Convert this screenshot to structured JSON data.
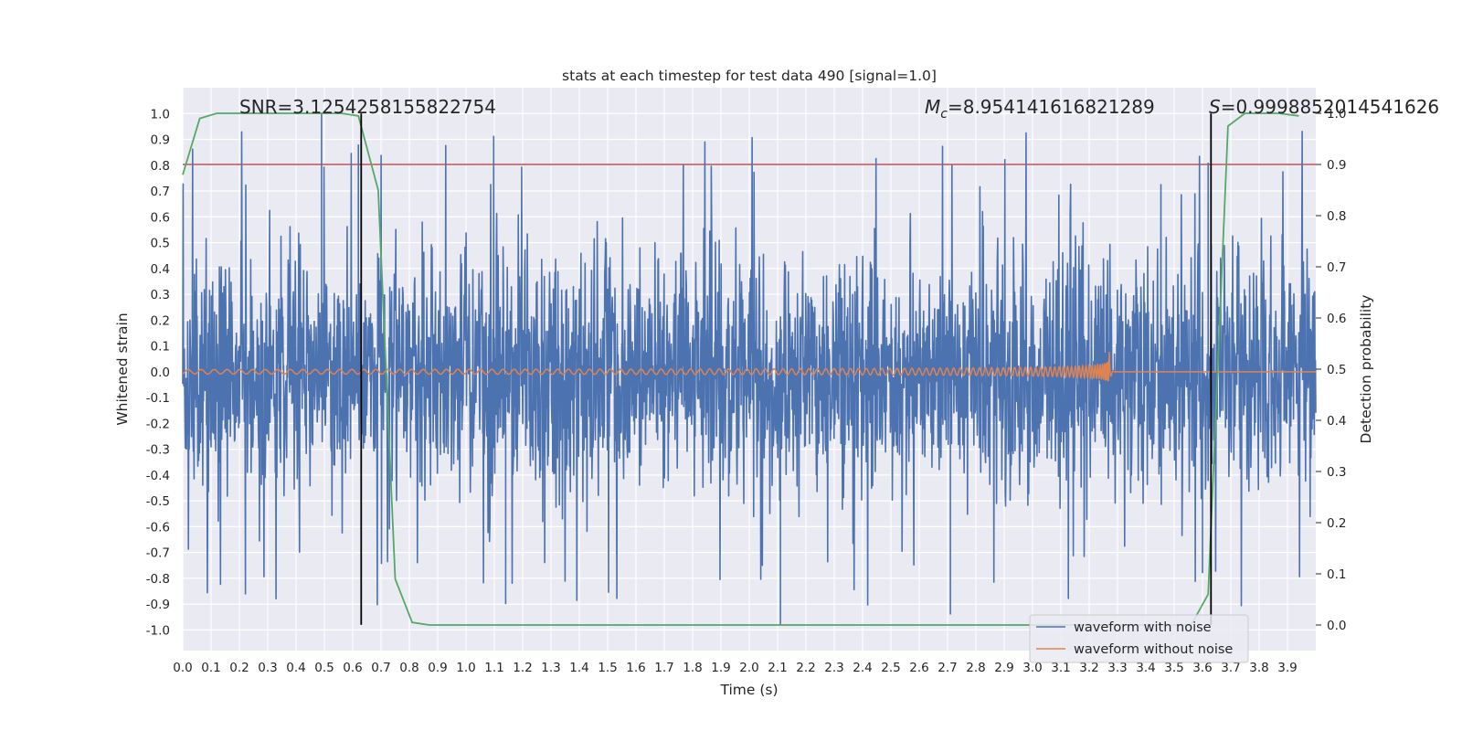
{
  "chart_data": {
    "type": "line",
    "title": "stats at each timestep for test data 490 [signal=1.0]",
    "xlabel": "Time (s)",
    "ylabel": "Whitened strain",
    "y2label": "Detection probability",
    "xlim": [
      0.0,
      4.0
    ],
    "ylim": [
      -1.08,
      1.1
    ],
    "y2lim": [
      -0.05,
      1.05
    ],
    "x_ticks": [
      0.0,
      0.1,
      0.2,
      0.3,
      0.4,
      0.5,
      0.6,
      0.7,
      0.8,
      0.9,
      1.0,
      1.1,
      1.2,
      1.3,
      1.4,
      1.5,
      1.6,
      1.7,
      1.8,
      1.9,
      2.0,
      2.1,
      2.2,
      2.3,
      2.4,
      2.5,
      2.6,
      2.7,
      2.8,
      2.9,
      3.0,
      3.1,
      3.2,
      3.3,
      3.4,
      3.5,
      3.6,
      3.7,
      3.8,
      3.9
    ],
    "y_ticks": [
      1.0,
      0.9,
      0.8,
      0.7,
      0.6,
      0.5,
      0.4,
      0.3,
      0.2,
      0.1,
      0.0,
      -0.1,
      -0.2,
      -0.3,
      -0.4,
      -0.5,
      -0.6,
      -0.7,
      -0.8,
      -0.9,
      -1.0
    ],
    "y2_ticks": [
      1.0,
      0.9,
      0.8,
      0.7,
      0.6,
      0.5,
      0.4,
      0.3,
      0.2,
      0.1,
      0.0
    ],
    "annotations": {
      "snr": "SNR=3.1254258155822754",
      "mc_symbol": "M",
      "mc_sub": "c",
      "mc_value": "=8.954141616821289",
      "s_symbol": "S",
      "s_value": "=0.9998852014541626"
    },
    "legend": {
      "location": "lower-right",
      "entries": [
        "waveform with noise",
        "waveform without noise"
      ]
    },
    "series": [
      {
        "name": "waveform with noise",
        "axis": "left",
        "color": "#4c72b0",
        "description": "dense noisy whitened strain, amplitude roughly within +/-0.45 with spikes up to about +/-1.0",
        "noise_std": 0.22,
        "notable_spikes": [
          {
            "x": 0.49,
            "y": 1.0
          },
          {
            "x": 0.62,
            "y": 0.88
          },
          {
            "x": 2.11,
            "y": -0.98
          },
          {
            "x": 2.71,
            "y": -0.94
          },
          {
            "x": 3.62,
            "y": 0.81
          },
          {
            "x": 3.6,
            "y": -0.78
          },
          {
            "x": 1.14,
            "y": -0.9
          }
        ]
      },
      {
        "name": "waveform without noise",
        "axis": "left",
        "color": "#dd8452",
        "description": "chirp signal with growing amplitude and frequency, merger near 3.27 s",
        "merger_time": 3.27,
        "peak_amplitude": 0.1
      },
      {
        "name": "detection probability",
        "axis": "right",
        "color": "#55a868",
        "x": [
          0.0,
          0.06,
          0.12,
          0.19,
          0.25,
          0.31,
          0.37,
          0.44,
          0.5,
          0.56,
          0.62,
          0.69,
          0.75,
          0.81,
          0.87,
          0.94,
          1.0,
          1.5,
          2.0,
          2.5,
          3.0,
          3.37,
          3.44,
          3.5,
          3.56,
          3.62,
          3.69,
          3.75,
          3.81,
          3.87,
          3.94
        ],
        "y": [
          0.88,
          0.99,
          1.0,
          1.0,
          1.0,
          1.0,
          1.0,
          1.0,
          1.0,
          1.0,
          0.995,
          0.85,
          0.09,
          0.005,
          0.0,
          0.0,
          0.0,
          0.0,
          0.0,
          0.0,
          0.0,
          0.0,
          0.0,
          0.0,
          0.0,
          0.06,
          0.975,
          1.0,
          1.0,
          1.0,
          0.995
        ]
      }
    ],
    "threshold": {
      "axis": "right",
      "value": 0.9,
      "color": "#c44e52"
    },
    "vertical_markers": [
      {
        "x": 0.63,
        "y_from": -0.98,
        "y_to": 1.0,
        "color": "#000000"
      },
      {
        "x": 3.63,
        "y_from": -0.98,
        "y_to": 1.0,
        "color": "#000000"
      }
    ]
  },
  "colors": {
    "plot_background": "#eaeaf2",
    "grid": "#ffffff",
    "text": "#262626"
  }
}
